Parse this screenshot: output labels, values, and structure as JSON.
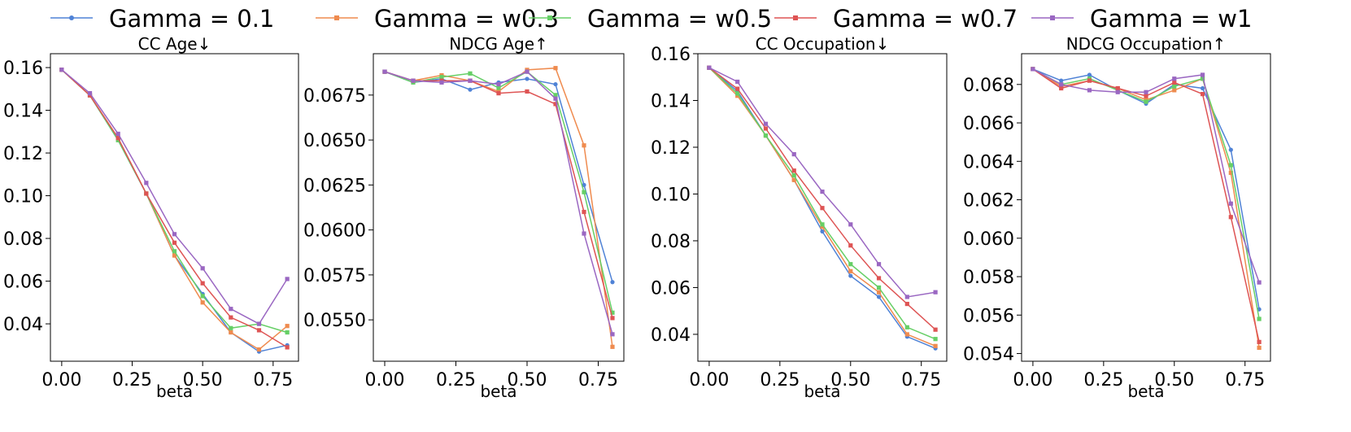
{
  "colors": {
    "Gamma = 0.1": "#4f82d6",
    "Gamma = w0.3": "#ef8b4f",
    "Gamma = w0.5": "#66cf66",
    "Gamma = w0.7": "#de5454",
    "Gamma = w1": "#9a67c2",
    "axis": "#000000"
  },
  "legend": {
    "placement": "top-center",
    "entries": [
      "Gamma = 0.1",
      "Gamma = w0.3",
      "Gamma = w0.5",
      "Gamma = w0.7",
      "Gamma = w1"
    ],
    "markers": [
      "circle",
      "square",
      "square",
      "square",
      "square"
    ]
  },
  "chart_data": [
    {
      "type": "line",
      "title": "CC Age↓",
      "xlabel": "beta",
      "ylabel": "",
      "x": [
        0.0,
        0.1,
        0.2,
        0.3,
        0.4,
        0.5,
        0.6,
        0.7,
        0.8
      ],
      "xlim": [
        -0.04,
        0.84
      ],
      "ylim": [
        0.0225,
        0.1665
      ],
      "xticks": [
        "0.00",
        "0.25",
        "0.50",
        "0.75"
      ],
      "xtick_values": [
        0.0,
        0.25,
        0.5,
        0.75
      ],
      "yticks": [
        "0.04",
        "0.06",
        "0.08",
        "0.10",
        "0.12",
        "0.14",
        "0.16"
      ],
      "ytick_values": [
        0.04,
        0.06,
        0.08,
        0.1,
        0.12,
        0.14,
        0.16
      ],
      "series": [
        {
          "name": "Gamma = 0.1",
          "values": [
            0.159,
            0.147,
            0.126,
            0.101,
            0.072,
            0.054,
            0.036,
            0.027,
            0.03
          ]
        },
        {
          "name": "Gamma = w0.3",
          "values": [
            0.159,
            0.147,
            0.127,
            0.101,
            0.072,
            0.05,
            0.036,
            0.028,
            0.039
          ]
        },
        {
          "name": "Gamma = w0.5",
          "values": [
            0.159,
            0.147,
            0.126,
            0.101,
            0.074,
            0.053,
            0.038,
            0.04,
            0.036
          ]
        },
        {
          "name": "Gamma = w0.7",
          "values": [
            0.159,
            0.147,
            0.127,
            0.101,
            0.078,
            0.059,
            0.043,
            0.037,
            0.029
          ]
        },
        {
          "name": "Gamma = w1",
          "values": [
            0.159,
            0.148,
            0.129,
            0.106,
            0.082,
            0.066,
            0.047,
            0.04,
            0.061
          ]
        }
      ]
    },
    {
      "type": "line",
      "title": "NDCG Age↑",
      "xlabel": "beta",
      "ylabel": "",
      "x": [
        0.0,
        0.1,
        0.2,
        0.3,
        0.4,
        0.5,
        0.6,
        0.7,
        0.8
      ],
      "xlim": [
        -0.04,
        0.84
      ],
      "ylim": [
        0.0527,
        0.0698
      ],
      "xticks": [
        "0.00",
        "0.25",
        "0.50",
        "0.75"
      ],
      "xtick_values": [
        0.0,
        0.25,
        0.5,
        0.75
      ],
      "yticks": [
        "0.0550",
        "0.0575",
        "0.0600",
        "0.0625",
        "0.0650",
        "0.0675"
      ],
      "ytick_values": [
        0.055,
        0.0575,
        0.06,
        0.0625,
        0.065,
        0.0675
      ],
      "series": [
        {
          "name": "Gamma = 0.1",
          "values": [
            0.0688,
            0.0682,
            0.0684,
            0.0678,
            0.0682,
            0.0684,
            0.0681,
            0.0625,
            0.0571
          ]
        },
        {
          "name": "Gamma = w0.3",
          "values": [
            0.0688,
            0.0683,
            0.0686,
            0.0683,
            0.0677,
            0.0689,
            0.069,
            0.0647,
            0.0535
          ]
        },
        {
          "name": "Gamma = w0.5",
          "values": [
            0.0688,
            0.0682,
            0.0685,
            0.0687,
            0.0679,
            0.0688,
            0.0675,
            0.0621,
            0.0554
          ]
        },
        {
          "name": "Gamma = w0.7",
          "values": [
            0.0688,
            0.0683,
            0.0683,
            0.0683,
            0.0676,
            0.0677,
            0.067,
            0.061,
            0.0551
          ]
        },
        {
          "name": "Gamma = w1",
          "values": [
            0.0688,
            0.0683,
            0.0682,
            0.0683,
            0.0681,
            0.0688,
            0.0673,
            0.0598,
            0.0542
          ]
        }
      ]
    },
    {
      "type": "line",
      "title": "CC Occupation↓",
      "xlabel": "beta",
      "ylabel": "",
      "x": [
        0.0,
        0.1,
        0.2,
        0.3,
        0.4,
        0.5,
        0.6,
        0.7,
        0.8
      ],
      "xlim": [
        -0.04,
        0.84
      ],
      "ylim": [
        0.0285,
        0.16
      ],
      "xticks": [
        "0.00",
        "0.25",
        "0.50",
        "0.75"
      ],
      "xtick_values": [
        0.0,
        0.25,
        0.5,
        0.75
      ],
      "yticks": [
        "0.04",
        "0.06",
        "0.08",
        "0.10",
        "0.12",
        "0.14",
        "0.16"
      ],
      "ytick_values": [
        0.04,
        0.06,
        0.08,
        0.1,
        0.12,
        0.14,
        0.16
      ],
      "series": [
        {
          "name": "Gamma = 0.1",
          "values": [
            0.154,
            0.144,
            0.125,
            0.106,
            0.084,
            0.065,
            0.056,
            0.039,
            0.034
          ]
        },
        {
          "name": "Gamma = w0.3",
          "values": [
            0.154,
            0.142,
            0.125,
            0.106,
            0.086,
            0.067,
            0.058,
            0.04,
            0.035
          ]
        },
        {
          "name": "Gamma = w0.5",
          "values": [
            0.154,
            0.143,
            0.125,
            0.108,
            0.087,
            0.07,
            0.06,
            0.043,
            0.038
          ]
        },
        {
          "name": "Gamma = w0.7",
          "values": [
            0.154,
            0.145,
            0.128,
            0.11,
            0.094,
            0.078,
            0.064,
            0.053,
            0.042
          ]
        },
        {
          "name": "Gamma = w1",
          "values": [
            0.154,
            0.148,
            0.13,
            0.117,
            0.101,
            0.087,
            0.07,
            0.056,
            0.058
          ]
        }
      ]
    },
    {
      "type": "line",
      "title": "NDCG Occupation↑",
      "xlabel": "beta",
      "ylabel": "",
      "x": [
        0.0,
        0.1,
        0.2,
        0.3,
        0.4,
        0.5,
        0.6,
        0.7,
        0.8
      ],
      "xlim": [
        -0.04,
        0.84
      ],
      "ylim": [
        0.0536,
        0.0696
      ],
      "xticks": [
        "0.00",
        "0.25",
        "0.50",
        "0.75"
      ],
      "xtick_values": [
        0.0,
        0.25,
        0.5,
        0.75
      ],
      "yticks": [
        "0.054",
        "0.056",
        "0.058",
        "0.060",
        "0.062",
        "0.064",
        "0.066",
        "0.068"
      ],
      "ytick_values": [
        0.054,
        0.056,
        0.058,
        0.06,
        0.062,
        0.064,
        0.066,
        0.068
      ],
      "series": [
        {
          "name": "Gamma = 0.1",
          "values": [
            0.0688,
            0.0682,
            0.0685,
            0.0677,
            0.067,
            0.068,
            0.0678,
            0.0646,
            0.0563
          ]
        },
        {
          "name": "Gamma = w0.3",
          "values": [
            0.0688,
            0.0679,
            0.0682,
            0.0678,
            0.0672,
            0.0677,
            0.0683,
            0.0634,
            0.0543
          ]
        },
        {
          "name": "Gamma = w0.5",
          "values": [
            0.0688,
            0.068,
            0.0683,
            0.0677,
            0.0671,
            0.0679,
            0.0683,
            0.0638,
            0.0558
          ]
        },
        {
          "name": "Gamma = w0.7",
          "values": [
            0.0688,
            0.0678,
            0.0682,
            0.0678,
            0.0674,
            0.0681,
            0.0675,
            0.0611,
            0.0546
          ]
        },
        {
          "name": "Gamma = w1",
          "values": [
            0.0688,
            0.068,
            0.0677,
            0.0676,
            0.0676,
            0.0683,
            0.0685,
            0.0618,
            0.0577
          ]
        }
      ]
    }
  ]
}
